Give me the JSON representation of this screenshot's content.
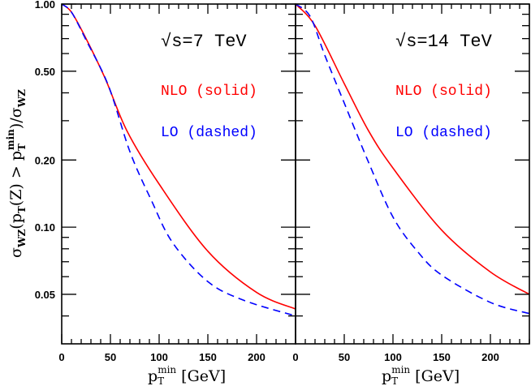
{
  "chart_data": [
    {
      "type": "line",
      "panel": "left",
      "annotations": {
        "energy": "√s=7 TeV",
        "nlo_label": "NLO (solid)",
        "lo_label": "LO (dashed)"
      },
      "xlim": [
        0,
        240
      ],
      "ylim": [
        0.03,
        1.0
      ],
      "yscale": "log",
      "x_ticks": [
        0,
        50,
        100,
        150,
        200
      ],
      "x_tick_labels": [
        "0",
        "50",
        "100",
        "150",
        "200"
      ],
      "y_ticks": [
        1.0,
        0.5,
        0.2,
        0.1,
        0.05
      ],
      "y_tick_labels": [
        "1.00",
        "0.50",
        "0.20",
        "0.10",
        "0.05"
      ],
      "series": [
        {
          "name": "NLO (solid)",
          "color": "#ff0000",
          "style": "solid",
          "x": [
            0,
            10,
            25,
            45,
            67,
            100,
            150,
            200,
            240
          ],
          "y": [
            1.0,
            0.92,
            0.7,
            0.46,
            0.27,
            0.156,
            0.078,
            0.051,
            0.043
          ]
        },
        {
          "name": "LO (dashed)",
          "color": "#0000ff",
          "style": "dashed",
          "x": [
            0,
            10,
            25,
            48,
            70,
            92,
            114,
            150,
            187,
            240
          ],
          "y": [
            1.0,
            0.92,
            0.69,
            0.43,
            0.218,
            0.132,
            0.085,
            0.057,
            0.047,
            0.04
          ]
        }
      ]
    },
    {
      "type": "line",
      "panel": "right",
      "annotations": {
        "energy": "√s=14 TeV",
        "nlo_label": "NLO (solid)",
        "lo_label": "LO (dashed)"
      },
      "xlim": [
        0,
        240
      ],
      "ylim": [
        0.03,
        1.0
      ],
      "yscale": "log",
      "x_ticks": [
        0,
        50,
        100,
        150,
        200
      ],
      "x_tick_labels": [
        "0",
        "50",
        "100",
        "150",
        "200"
      ],
      "series": [
        {
          "name": "NLO (solid)",
          "color": "#ff0000",
          "style": "solid",
          "x": [
            0,
            20,
            50,
            75,
            100,
            150,
            200,
            240
          ],
          "y": [
            1.0,
            0.8,
            0.44,
            0.27,
            0.184,
            0.097,
            0.063,
            0.05
          ]
        },
        {
          "name": "LO (dashed)",
          "color": "#0000ff",
          "style": "dashed",
          "x": [
            0,
            15,
            30,
            50,
            75,
            100,
            125,
            150,
            200,
            240
          ],
          "y": [
            1.0,
            0.88,
            0.59,
            0.36,
            0.195,
            0.111,
            0.078,
            0.061,
            0.046,
            0.041
          ]
        }
      ]
    }
  ],
  "axes": {
    "xlabel": {
      "main": "p",
      "sub": "T",
      "sup": "min",
      "rest": " [GeV]"
    },
    "ylabel": [
      {
        "t": "σ"
      },
      {
        "sub": "WZ"
      },
      {
        "t": "(p"
      },
      {
        "sub": "T"
      },
      {
        "t": "(Z) > p"
      },
      {
        "sub": "T"
      },
      {
        "sup": "min"
      },
      {
        "t": ")/σ"
      },
      {
        "sub": "WZ"
      }
    ]
  }
}
